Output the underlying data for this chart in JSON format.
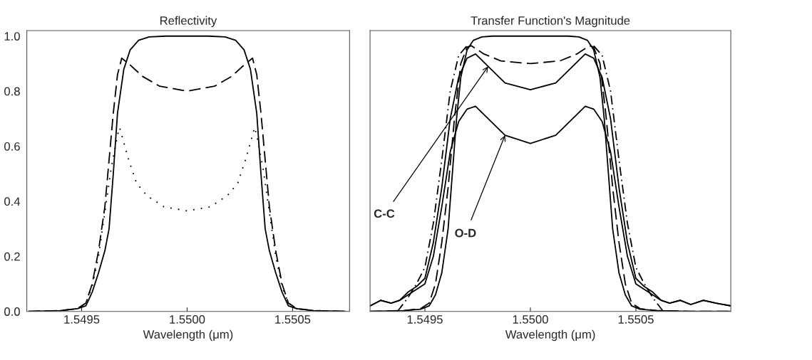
{
  "chart_data": [
    {
      "type": "line",
      "title": "Reflectivity",
      "xlabel": "Wavelength (μm)",
      "xlim": [
        1.54924,
        1.55077
      ],
      "ylim": [
        0,
        1.02
      ],
      "xticks": [
        {
          "value": 1.5495,
          "label": "1.5495"
        },
        {
          "value": 1.55,
          "label": "1.5500"
        },
        {
          "value": 1.5505,
          "label": "1.5505"
        }
      ],
      "yticks": [
        {
          "value": 0,
          "label": "0.0"
        },
        {
          "value": 0.2,
          "label": "0.2"
        },
        {
          "value": 0.4,
          "label": "0.4"
        },
        {
          "value": 0.6,
          "label": "0.6"
        },
        {
          "value": 0.8,
          "label": "0.8"
        },
        {
          "value": 1.0,
          "label": "1.0"
        }
      ],
      "grid": false,
      "series": [
        {
          "color": "#000000",
          "line_style": "solid",
          "x": [
            1.54925,
            1.5494,
            1.54948,
            1.54952,
            1.54955,
            1.54958,
            1.54961,
            1.54963,
            1.54965,
            1.54967,
            1.5497,
            1.54973,
            1.54977,
            1.54982,
            1.5499,
            1.55,
            1.5501,
            1.55018,
            1.55023,
            1.55027,
            1.5503,
            1.55033,
            1.55035,
            1.55037,
            1.55039,
            1.55042,
            1.55045,
            1.55048,
            1.55052,
            1.5506,
            1.55075
          ],
          "values": [
            0,
            0.003,
            0.01,
            0.02,
            0.07,
            0.14,
            0.22,
            0.3,
            0.5,
            0.72,
            0.88,
            0.95,
            0.985,
            0.997,
            1.0,
            1.0,
            1.0,
            0.997,
            0.985,
            0.95,
            0.88,
            0.72,
            0.5,
            0.3,
            0.22,
            0.14,
            0.07,
            0.02,
            0.01,
            0.003,
            0
          ]
        },
        {
          "color": "#000000",
          "line_style": "dashed",
          "x": [
            1.54925,
            1.5494,
            1.54948,
            1.54952,
            1.54955,
            1.54958,
            1.54961,
            1.54963,
            1.54965,
            1.54967,
            1.54969,
            1.54973,
            1.54979,
            1.54987,
            1.55,
            1.55013,
            1.55021,
            1.55027,
            1.55031,
            1.55033,
            1.55035,
            1.55037,
            1.55039,
            1.55042,
            1.55045,
            1.55048,
            1.55052,
            1.5506,
            1.55075
          ],
          "values": [
            0,
            0.003,
            0.01,
            0.03,
            0.1,
            0.22,
            0.38,
            0.55,
            0.72,
            0.86,
            0.92,
            0.895,
            0.853,
            0.818,
            0.8,
            0.818,
            0.853,
            0.895,
            0.92,
            0.86,
            0.72,
            0.55,
            0.38,
            0.22,
            0.1,
            0.03,
            0.01,
            0.003,
            0
          ]
        },
        {
          "color": "#000000",
          "line_style": "dotted",
          "x": [
            1.54925,
            1.5494,
            1.54948,
            1.54952,
            1.54955,
            1.54958,
            1.54961,
            1.54964,
            1.54967,
            1.54968,
            1.54972,
            1.54976,
            1.54981,
            1.54989,
            1.55,
            1.55011,
            1.55019,
            1.55024,
            1.55028,
            1.55032,
            1.55033,
            1.55036,
            1.55039,
            1.55042,
            1.55045,
            1.55048,
            1.55052,
            1.5506,
            1.55075
          ],
          "values": [
            0,
            0.003,
            0.01,
            0.03,
            0.09,
            0.2,
            0.36,
            0.52,
            0.64,
            0.668,
            0.558,
            0.466,
            0.42,
            0.38,
            0.365,
            0.38,
            0.42,
            0.466,
            0.558,
            0.668,
            0.64,
            0.52,
            0.36,
            0.2,
            0.09,
            0.03,
            0.01,
            0.003,
            0
          ]
        }
      ]
    },
    {
      "type": "line",
      "title": "Transfer Function's Magnitude",
      "xlabel": "Wavelength (μm)",
      "xlim": [
        1.54924,
        1.55095
      ],
      "ylim": [
        0,
        1.02
      ],
      "xticks": [
        {
          "value": 1.5495,
          "label": "1.5495"
        },
        {
          "value": 1.55,
          "label": "1.5500"
        },
        {
          "value": 1.5505,
          "label": "1.5505"
        }
      ],
      "tick_labels": "x",
      "grid": false,
      "annotations": [
        {
          "text": "C-C",
          "x": 1.5498,
          "y": 0.89
        },
        {
          "text": "O-D",
          "x": 1.54988,
          "y": 0.64
        }
      ],
      "series": [
        {
          "color": "#000000",
          "line_style": "solid",
          "x": [
            1.54924,
            1.5494,
            1.54948,
            1.54952,
            1.54955,
            1.54958,
            1.54961,
            1.54963,
            1.54965,
            1.54967,
            1.5497,
            1.54973,
            1.54977,
            1.54982,
            1.5499,
            1.55,
            1.5501,
            1.55018,
            1.55023,
            1.55027,
            1.5503,
            1.55033,
            1.55035,
            1.55037,
            1.55039,
            1.55042,
            1.55045,
            1.55048,
            1.55052,
            1.5506,
            1.55075,
            1.55095
          ],
          "values": [
            0,
            0.003,
            0.008,
            0.02,
            0.06,
            0.14,
            0.3,
            0.5,
            0.7,
            0.85,
            0.95,
            0.985,
            0.997,
            1.0,
            1.0,
            1.0,
            1.0,
            1.0,
            0.997,
            0.985,
            0.95,
            0.85,
            0.7,
            0.5,
            0.3,
            0.14,
            0.06,
            0.02,
            0.008,
            0.003,
            0,
            0
          ]
        },
        {
          "color": "#000000",
          "line_style": "dashed",
          "x": [
            1.54924,
            1.5494,
            1.54948,
            1.54952,
            1.54955,
            1.54958,
            1.54961,
            1.54964,
            1.54967,
            1.5497,
            1.54972,
            1.54978,
            1.54986,
            1.55,
            1.55014,
            1.55022,
            1.55028,
            1.5503,
            1.55033,
            1.55036,
            1.55039,
            1.55042,
            1.55045,
            1.55048,
            1.55052,
            1.5506,
            1.55076,
            1.55095
          ],
          "values": [
            0,
            0.003,
            0.01,
            0.03,
            0.1,
            0.25,
            0.45,
            0.7,
            0.9,
            0.96,
            0.965,
            0.935,
            0.91,
            0.9,
            0.91,
            0.935,
            0.965,
            0.96,
            0.9,
            0.7,
            0.45,
            0.25,
            0.1,
            0.03,
            0.01,
            0.003,
            0,
            0
          ]
        },
        {
          "color": "#000000",
          "line_style": "solid",
          "x": [
            1.54924,
            1.54929,
            1.54934,
            1.54938,
            1.54942,
            1.54946,
            1.5495,
            1.54954,
            1.54958,
            1.54962,
            1.54966,
            1.5497,
            1.54974,
            1.5498,
            1.54988,
            1.55,
            1.55012,
            1.5502,
            1.55026,
            1.5503,
            1.55034,
            1.55038,
            1.55042,
            1.55046,
            1.5505,
            1.55054,
            1.55058,
            1.55062,
            1.55066,
            1.55071,
            1.55076,
            1.55082,
            1.55088,
            1.55095
          ],
          "values": [
            0.02,
            0.04,
            0.03,
            0.04,
            0.07,
            0.09,
            0.12,
            0.25,
            0.45,
            0.7,
            0.85,
            0.92,
            0.935,
            0.89,
            0.83,
            0.805,
            0.83,
            0.89,
            0.935,
            0.92,
            0.85,
            0.7,
            0.45,
            0.25,
            0.12,
            0.09,
            0.07,
            0.04,
            0.03,
            0.04,
            0.025,
            0.04,
            0.03,
            0.02
          ]
        },
        {
          "color": "#000000",
          "line_style": "solid",
          "x": [
            1.54924,
            1.54929,
            1.54934,
            1.54938,
            1.54942,
            1.54946,
            1.5495,
            1.54954,
            1.54958,
            1.54962,
            1.54966,
            1.5497,
            1.54974,
            1.5498,
            1.54988,
            1.55,
            1.55012,
            1.5502,
            1.55026,
            1.5503,
            1.55034,
            1.55038,
            1.55042,
            1.55046,
            1.5505,
            1.55054,
            1.55058,
            1.55062,
            1.55066,
            1.55071,
            1.55076,
            1.55082,
            1.55088,
            1.55095
          ],
          "values": [
            0.02,
            0.04,
            0.03,
            0.04,
            0.06,
            0.08,
            0.1,
            0.2,
            0.38,
            0.58,
            0.69,
            0.735,
            0.745,
            0.7,
            0.64,
            0.61,
            0.64,
            0.7,
            0.745,
            0.735,
            0.69,
            0.58,
            0.38,
            0.2,
            0.1,
            0.08,
            0.06,
            0.04,
            0.03,
            0.04,
            0.025,
            0.04,
            0.03,
            0.02
          ]
        },
        {
          "color": "#000000",
          "line_style": "dashdot",
          "x": [
            1.54937,
            1.54942,
            1.54946,
            1.5495,
            1.54954,
            1.54958,
            1.54962,
            1.54966,
            1.5497,
            1.55,
            1.5503,
            1.55034,
            1.55038,
            1.55042,
            1.55046,
            1.5505,
            1.55054,
            1.55058,
            1.55063
          ],
          "values": [
            0,
            0.05,
            0.1,
            0.16,
            0.32,
            0.55,
            0.8,
            0.93,
            0.965,
            null,
            0.965,
            0.93,
            0.8,
            0.55,
            0.32,
            0.16,
            0.1,
            0.05,
            0
          ]
        }
      ]
    }
  ]
}
